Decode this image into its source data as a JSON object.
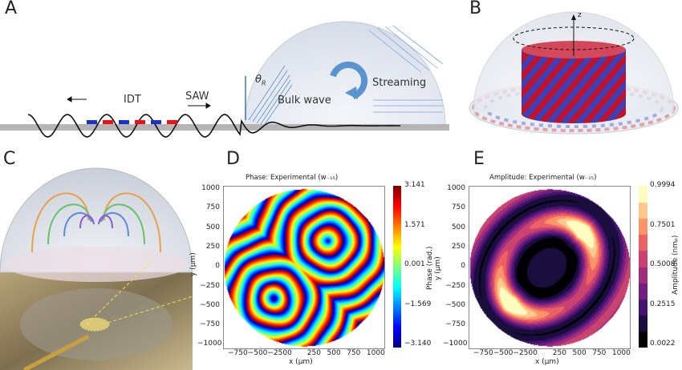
{
  "panels": {
    "a": "A",
    "b": "B",
    "c": "C",
    "d": "D",
    "e": "E"
  },
  "panel_a": {
    "idt": "IDT",
    "saw": "SAW",
    "theta": "θ",
    "theta_sub": "R",
    "bulk": "Bulk wave",
    "streaming": "Streaming"
  },
  "panel_b": {
    "z": "z"
  },
  "chart_data": [
    {
      "type": "heatmap",
      "title": "Phase: Experimental (w₋₁₅)",
      "xlabel": "x (μm)",
      "ylabel": "y (μm)",
      "xticks": [
        "−750",
        "−500",
        "−250",
        "0",
        "250",
        "500",
        "750",
        "1000"
      ],
      "yticks": [
        "1000",
        "750",
        "500",
        "250",
        "0",
        "−250",
        "−500",
        "−750",
        "−1000"
      ],
      "xlim": [
        -1000,
        1080
      ],
      "ylim": [
        -1050,
        1050
      ],
      "colorbar": {
        "label": "Phase (rad.)",
        "extra_label": "y (μm)",
        "ticks": [
          "3.141",
          "1.571",
          "0.001",
          "−1.569",
          "−3.140"
        ],
        "range": [
          -3.14,
          3.141
        ],
        "colormap": "jet"
      },
      "description_centers": [
        [
          -350,
          -400
        ],
        [
          350,
          350
        ]
      ]
    },
    {
      "type": "heatmap",
      "title": "Amplitude: Experimental (w₋₁₅)",
      "xlabel": "x (μm)",
      "ylabel": "y (μm)",
      "xticks": [
        "−750",
        "−500",
        "−250",
        "0",
        "250",
        "500",
        "750",
        "1000"
      ],
      "yticks": [
        "1000",
        "750",
        "500",
        "250",
        "0",
        "−250",
        "−500",
        "−750",
        "−1000"
      ],
      "xlim": [
        -1000,
        1080
      ],
      "ylim": [
        -1050,
        1050
      ],
      "colorbar": {
        "label": "Amplitude (nmₚ)",
        "ticks": [
          "0.9994",
          "0.7501",
          "0.5008",
          "0.2515",
          "0.0022"
        ],
        "range": [
          0.0022,
          0.9994
        ],
        "colormap": "magma",
        "levels": 10
      }
    }
  ]
}
